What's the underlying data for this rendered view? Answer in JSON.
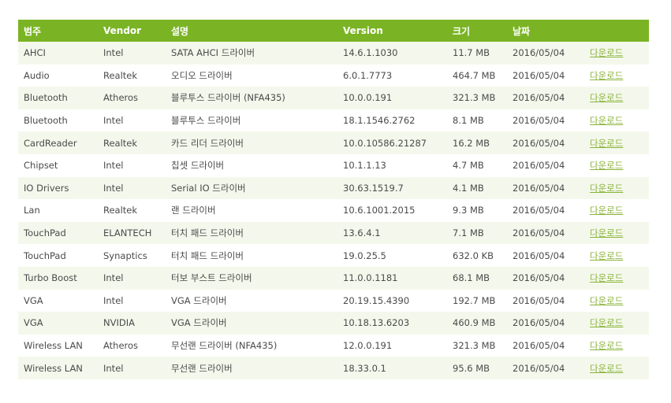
{
  "table": {
    "headers": [
      "범주",
      "Vendor",
      "설명",
      "Version",
      "크기",
      "날짜",
      ""
    ],
    "download_label": "다운로드",
    "rows": [
      [
        "AHCI",
        "Intel",
        "SATA AHCI 드라이버",
        "14.6.1.1030",
        "11.7 MB",
        "2016/05/04"
      ],
      [
        "Audio",
        "Realtek",
        "오디오 드라이버",
        "6.0.1.7773",
        "464.7 MB",
        "2016/05/04"
      ],
      [
        "Bluetooth",
        "Atheros",
        "블루투스 드라이버 (NFA435)",
        "10.0.0.191",
        "321.3 MB",
        "2016/05/04"
      ],
      [
        "Bluetooth",
        "Intel",
        "블루투스 드라이버",
        "18.1.1546.2762",
        "8.1 MB",
        "2016/05/04"
      ],
      [
        "CardReader",
        "Realtek",
        "카드 리더 드라이버",
        "10.0.10586.21287",
        "16.2 MB",
        "2016/05/04"
      ],
      [
        "Chipset",
        "Intel",
        "칩셋 드라이버",
        "10.1.1.13",
        "4.7 MB",
        "2016/05/04"
      ],
      [
        "IO Drivers",
        "Intel",
        "Serial IO 드라이버",
        "30.63.1519.7",
        "4.1 MB",
        "2016/05/04"
      ],
      [
        "Lan",
        "Realtek",
        "랜 드라이버",
        "10.6.1001.2015",
        "9.3 MB",
        "2016/05/04"
      ],
      [
        "TouchPad",
        "ELANTECH",
        "터치 패드 드라이버",
        "13.6.4.1",
        "7.1 MB",
        "2016/05/04"
      ],
      [
        "TouchPad",
        "Synaptics",
        "터치 패드 드라이버",
        "19.0.25.5",
        "632.0 KB",
        "2016/05/04"
      ],
      [
        "Turbo Boost",
        "Intel",
        "터보 부스트 드라이버",
        "11.0.0.1181",
        "68.1 MB",
        "2016/05/04"
      ],
      [
        "VGA",
        "Intel",
        "VGA 드라이버",
        "20.19.15.4390",
        "192.7 MB",
        "2016/05/04"
      ],
      [
        "VGA",
        "NVIDIA",
        "VGA 드라이버",
        "10.18.13.6203",
        "460.9 MB",
        "2016/05/04"
      ],
      [
        "Wireless LAN",
        "Atheros",
        "무선랜 드라이버 (NFA435)",
        "12.0.0.191",
        "321.3 MB",
        "2016/05/04"
      ],
      [
        "Wireless LAN",
        "Intel",
        "무선랜 드라이버",
        "18.33.0.1",
        "95.6 MB",
        "2016/05/04"
      ]
    ]
  },
  "colors": {
    "header_bg": "#7ab424",
    "row_alt_bg": "#f4f8ec",
    "link": "#8ab33a",
    "text": "#4a4a4a"
  }
}
